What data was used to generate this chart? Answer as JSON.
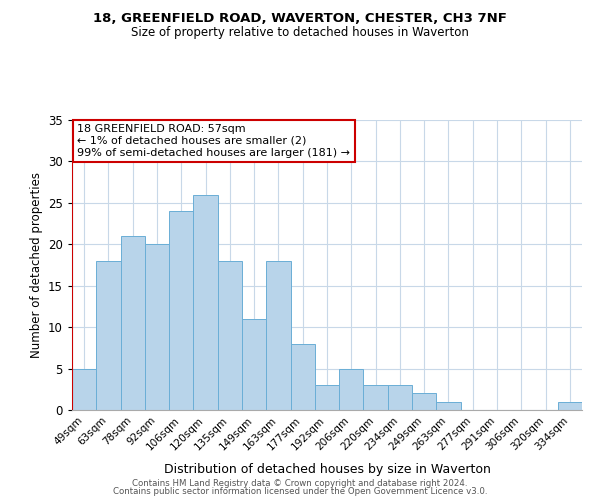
{
  "title1": "18, GREENFIELD ROAD, WAVERTON, CHESTER, CH3 7NF",
  "title2": "Size of property relative to detached houses in Waverton",
  "xlabel": "Distribution of detached houses by size in Waverton",
  "ylabel": "Number of detached properties",
  "categories": [
    "49sqm",
    "63sqm",
    "78sqm",
    "92sqm",
    "106sqm",
    "120sqm",
    "135sqm",
    "149sqm",
    "163sqm",
    "177sqm",
    "192sqm",
    "206sqm",
    "220sqm",
    "234sqm",
    "249sqm",
    "263sqm",
    "277sqm",
    "291sqm",
    "306sqm",
    "320sqm",
    "334sqm"
  ],
  "values": [
    5,
    18,
    21,
    20,
    24,
    26,
    18,
    11,
    18,
    8,
    3,
    5,
    3,
    3,
    2,
    1,
    0,
    0,
    0,
    0,
    1
  ],
  "bar_color": "#b8d4ea",
  "bar_edge_color": "#6aaed6",
  "highlight_line_color": "#cc0000",
  "annotation_line1": "18 GREENFIELD ROAD: 57sqm",
  "annotation_line2": "← 1% of detached houses are smaller (2)",
  "annotation_line3": "99% of semi-detached houses are larger (181) →",
  "annotation_box_color": "#ffffff",
  "annotation_box_edge": "#cc0000",
  "ylim": [
    0,
    35
  ],
  "yticks": [
    0,
    5,
    10,
    15,
    20,
    25,
    30,
    35
  ],
  "footer1": "Contains HM Land Registry data © Crown copyright and database right 2024.",
  "footer2": "Contains public sector information licensed under the Open Government Licence v3.0.",
  "bg_color": "#ffffff",
  "grid_color": "#c8d8e8"
}
